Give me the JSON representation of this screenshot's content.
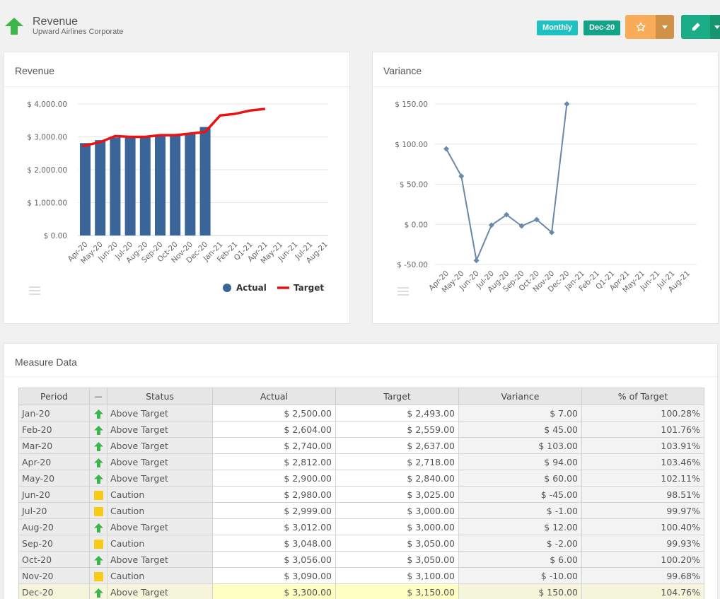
{
  "header": {
    "title": "Revenue",
    "subtitle": "Upward Airlines Corporate",
    "frequency": "Monthly",
    "period": "Dec-20",
    "status_icon": "up-arrow-icon",
    "colors": {
      "up": "#3cb54a",
      "caution": "#f9cb19",
      "frequency_badge": "#1fc1c3",
      "period_badge": "#12a389",
      "favorite_button": "#f8ac59",
      "edit_button": "#1bad87"
    }
  },
  "revenue_panel": {
    "title": "Revenue"
  },
  "variance_panel": {
    "title": "Variance"
  },
  "measure_panel": {
    "title": "Measure Data"
  },
  "chart_data": [
    {
      "type": "bar",
      "categories": [
        "Apr-20",
        "May-20",
        "Jun-20",
        "Jul-20",
        "Aug-20",
        "Sep-20",
        "Oct-20",
        "Nov-20",
        "Dec-20",
        "Jan-21",
        "Feb-21",
        "Q1-21",
        "Apr-21",
        "May-21",
        "Jun-21",
        "Jul-21",
        "Aug-21"
      ],
      "series": [
        {
          "name": "Actual",
          "type": "bar",
          "color": "#3a6598",
          "values": [
            2812,
            2900,
            2980,
            2999,
            3012,
            3048,
            3056,
            3090,
            3300,
            null,
            null,
            null,
            null,
            null,
            null,
            null,
            null
          ]
        },
        {
          "name": "Target",
          "type": "line",
          "color": "#ee1111",
          "values": [
            2718,
            2840,
            3025,
            3000,
            3000,
            3050,
            3050,
            3100,
            3150,
            3650,
            3700,
            3800,
            3850,
            null,
            null,
            null,
            null
          ]
        }
      ],
      "yticks": [
        "$ 0.00",
        "$ 1,000.00",
        "$ 2,000.00",
        "$ 3,000.00",
        "$ 4,000.00"
      ],
      "ylim": [
        0,
        4000
      ],
      "legend": "bottom-right",
      "grid": true
    },
    {
      "type": "line",
      "categories": [
        "Apr-20",
        "May-20",
        "Jun-20",
        "Jul-20",
        "Aug-20",
        "Sep-20",
        "Oct-20",
        "Nov-20",
        "Dec-20",
        "Jan-21",
        "Feb-21",
        "Q1-21",
        "Apr-21",
        "May-21",
        "Jun-21",
        "Jul-21",
        "Aug-21"
      ],
      "series": [
        {
          "color": "#6a88a8",
          "values": [
            94,
            60,
            -45,
            -1,
            12,
            -2,
            6,
            -10,
            150,
            null,
            null,
            null,
            null,
            null,
            null,
            null,
            null
          ]
        }
      ],
      "yticks": [
        "$ -50.00",
        "$ 0.00",
        "$ 50.00",
        "$ 100.00",
        "$ 150.00"
      ],
      "ylim": [
        -50,
        150
      ],
      "grid": true
    }
  ],
  "table": {
    "headers": {
      "period": "Period",
      "status": "Status",
      "actual": "Actual",
      "target": "Target",
      "variance": "Variance",
      "pct": "% of Target"
    },
    "rows": [
      {
        "period": "Jan-20",
        "icon": "up",
        "status": "Above Target",
        "actual": "$ 2,500.00",
        "target": "$ 2,493.00",
        "variance": "$ 7.00",
        "pct": "100.28%"
      },
      {
        "period": "Feb-20",
        "icon": "up",
        "status": "Above Target",
        "actual": "$ 2,604.00",
        "target": "$ 2,559.00",
        "variance": "$ 45.00",
        "pct": "101.76%"
      },
      {
        "period": "Mar-20",
        "icon": "up",
        "status": "Above Target",
        "actual": "$ 2,740.00",
        "target": "$ 2,637.00",
        "variance": "$ 103.00",
        "pct": "103.91%"
      },
      {
        "period": "Apr-20",
        "icon": "up",
        "status": "Above Target",
        "actual": "$ 2,812.00",
        "target": "$ 2,718.00",
        "variance": "$ 94.00",
        "pct": "103.46%"
      },
      {
        "period": "May-20",
        "icon": "up",
        "status": "Above Target",
        "actual": "$ 2,900.00",
        "target": "$ 2,840.00",
        "variance": "$ 60.00",
        "pct": "102.11%"
      },
      {
        "period": "Jun-20",
        "icon": "caution",
        "status": "Caution",
        "actual": "$ 2,980.00",
        "target": "$ 3,025.00",
        "variance": "$ -45.00",
        "pct": "98.51%"
      },
      {
        "period": "Jul-20",
        "icon": "caution",
        "status": "Caution",
        "actual": "$ 2,999.00",
        "target": "$ 3,000.00",
        "variance": "$ -1.00",
        "pct": "99.97%"
      },
      {
        "period": "Aug-20",
        "icon": "up",
        "status": "Above Target",
        "actual": "$ 3,012.00",
        "target": "$ 3,000.00",
        "variance": "$ 12.00",
        "pct": "100.40%"
      },
      {
        "period": "Sep-20",
        "icon": "caution",
        "status": "Caution",
        "actual": "$ 3,048.00",
        "target": "$ 3,050.00",
        "variance": "$ -2.00",
        "pct": "99.93%"
      },
      {
        "period": "Oct-20",
        "icon": "up",
        "status": "Above Target",
        "actual": "$ 3,056.00",
        "target": "$ 3,050.00",
        "variance": "$ 6.00",
        "pct": "100.20%"
      },
      {
        "period": "Nov-20",
        "icon": "caution",
        "status": "Caution",
        "actual": "$ 3,090.00",
        "target": "$ 3,100.00",
        "variance": "$ -10.00",
        "pct": "99.68%"
      },
      {
        "period": "Dec-20",
        "icon": "up",
        "status": "Above Target",
        "actual": "$ 3,300.00",
        "target": "$ 3,150.00",
        "variance": "$ 150.00",
        "pct": "104.76%",
        "highlight": true
      }
    ]
  }
}
